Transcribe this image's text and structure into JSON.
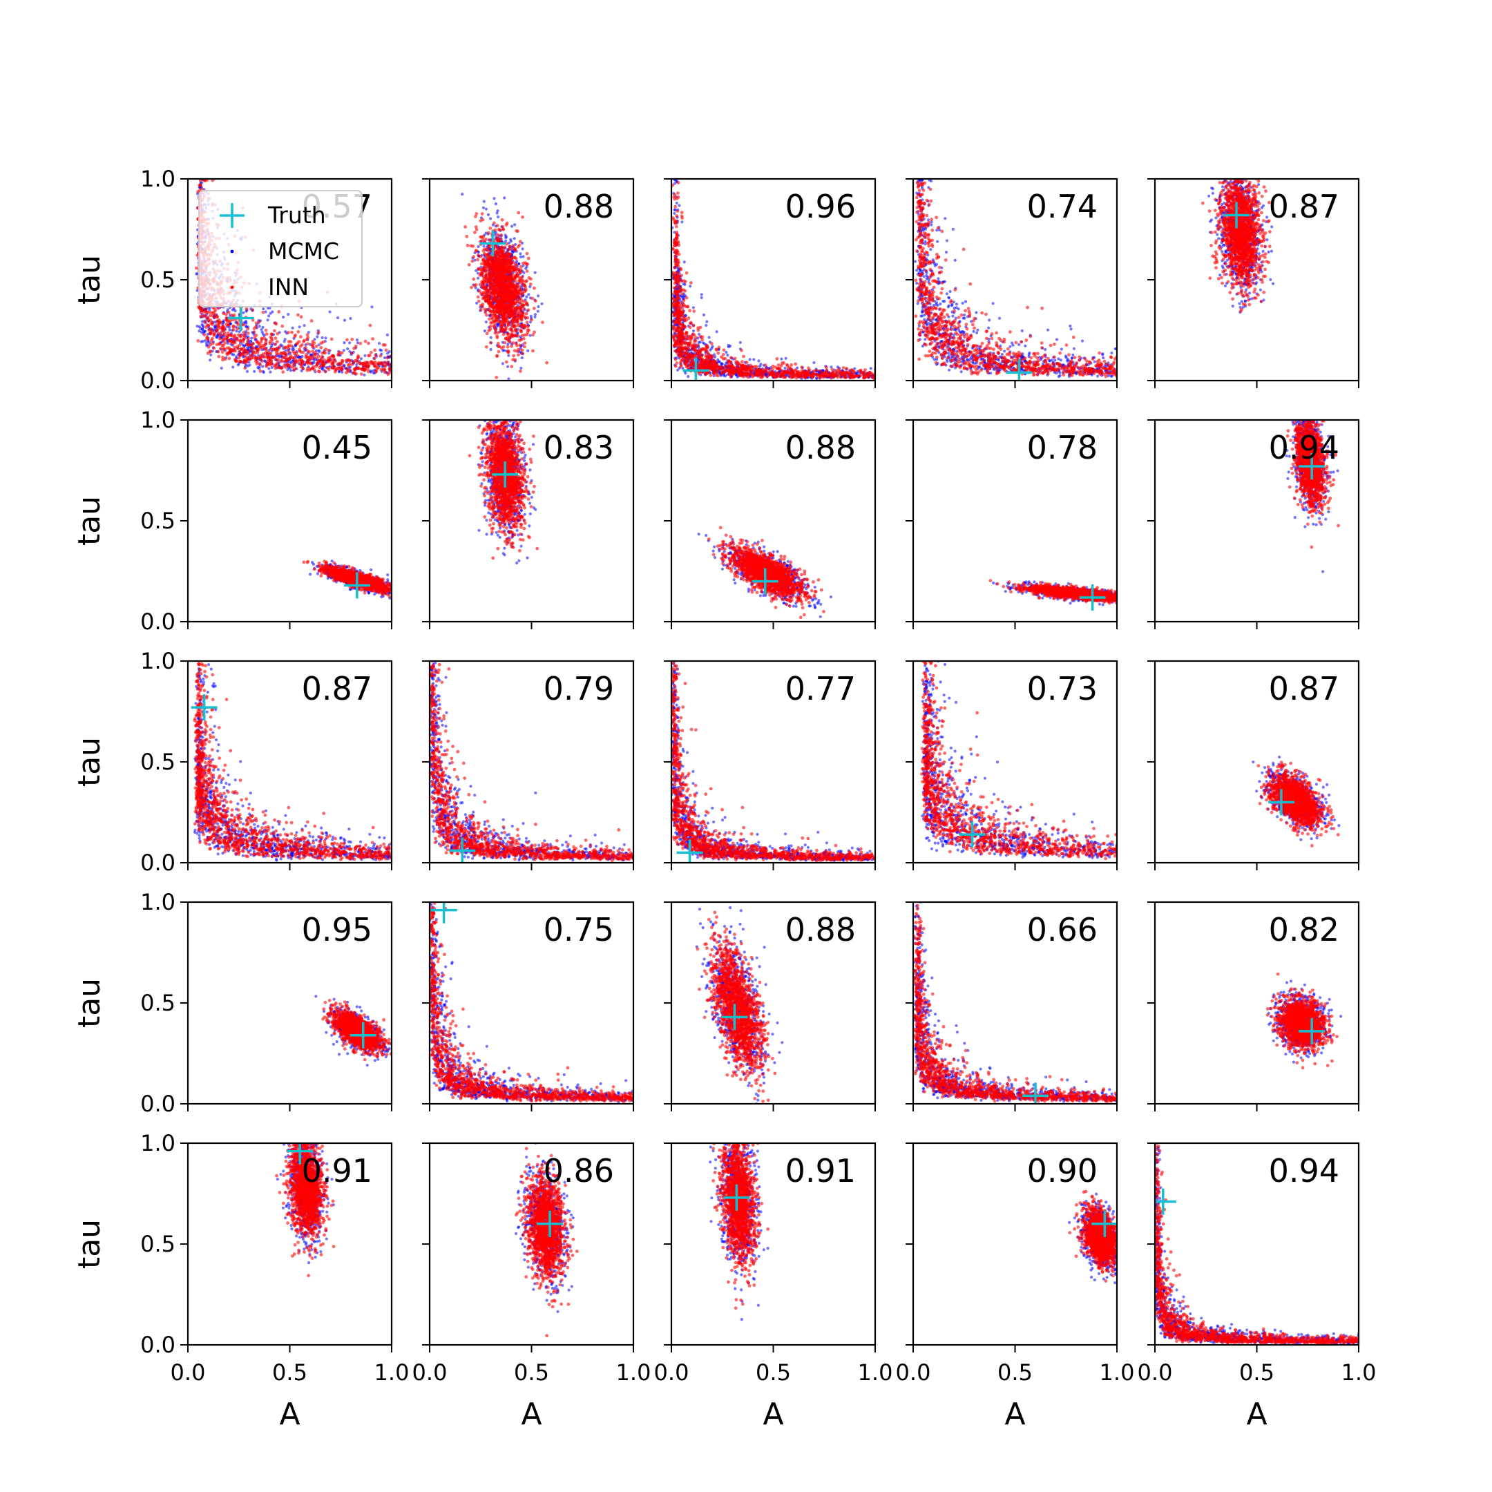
{
  "chart_data": {
    "type": "scatter",
    "grid": {
      "rows": 5,
      "cols": 5
    },
    "xlabel": "A",
    "ylabel": "tau",
    "xlim": [
      0,
      1
    ],
    "ylim": [
      0,
      1
    ],
    "xticks": [
      "0.0",
      "0.5",
      "1.0"
    ],
    "yticks": [
      "0.0",
      "0.5",
      "1.0"
    ],
    "grid_lines": false,
    "legend": {
      "placement": "top-left of first panel",
      "entries": [
        {
          "label": "Truth",
          "marker": "plus",
          "color": "#17becf"
        },
        {
          "label": "MCMC",
          "marker": "dot",
          "color": "#0000ff"
        },
        {
          "label": "INN",
          "marker": "dot",
          "color": "#ff0000"
        }
      ]
    },
    "colors": {
      "truth": "#17becf",
      "mcmc": "#0000ff",
      "inn": "#ff0000"
    },
    "panels": [
      {
        "score": "0.57",
        "truth": [
          0.26,
          0.31
        ],
        "shape": "curve",
        "a0": 0.06,
        "t0": 0.12,
        "k": 0.05,
        "n": 1100
      },
      {
        "score": "0.88",
        "truth": [
          0.31,
          0.68
        ],
        "shape": "blob",
        "cx": 0.36,
        "cy": 0.46,
        "sx": 0.055,
        "sy": 0.13,
        "rho": -0.3
      },
      {
        "score": "0.96",
        "truth": [
          0.12,
          0.05
        ],
        "shape": "curve",
        "a0": 0.02,
        "t0": 0.05,
        "k": 0.012,
        "n": 1100
      },
      {
        "score": "0.74",
        "truth": [
          0.52,
          0.04
        ],
        "shape": "curve",
        "a0": 0.03,
        "t0": 0.08,
        "k": 0.035,
        "n": 1100
      },
      {
        "score": "0.87",
        "truth": [
          0.4,
          0.82
        ],
        "shape": "blob",
        "cx": 0.42,
        "cy": 0.74,
        "sx": 0.05,
        "sy": 0.14,
        "rho": -0.2
      },
      {
        "score": "0.45",
        "truth": [
          0.83,
          0.18
        ],
        "shape": "blob",
        "cx": 0.83,
        "cy": 0.21,
        "sx": 0.075,
        "sy": 0.028,
        "rho": -0.8
      },
      {
        "score": "0.83",
        "truth": [
          0.37,
          0.73
        ],
        "shape": "blob",
        "cx": 0.37,
        "cy": 0.73,
        "sx": 0.045,
        "sy": 0.14,
        "rho": -0.2
      },
      {
        "score": "0.88",
        "truth": [
          0.46,
          0.2
        ],
        "shape": "blob",
        "cx": 0.47,
        "cy": 0.24,
        "sx": 0.09,
        "sy": 0.06,
        "rho": -0.7
      },
      {
        "score": "0.78",
        "truth": [
          0.88,
          0.12
        ],
        "shape": "blob",
        "cx": 0.8,
        "cy": 0.14,
        "sx": 0.12,
        "sy": 0.018,
        "rho": -0.7
      },
      {
        "score": "0.94",
        "truth": [
          0.77,
          0.77
        ],
        "shape": "blob",
        "cx": 0.76,
        "cy": 0.8,
        "sx": 0.035,
        "sy": 0.11,
        "rho": -0.3
      },
      {
        "score": "0.87",
        "truth": [
          0.08,
          0.77
        ],
        "shape": "curve",
        "a0": 0.05,
        "t0": 0.04,
        "k": 0.03,
        "n": 1200
      },
      {
        "score": "0.79",
        "truth": [
          0.16,
          0.06
        ],
        "shape": "curve",
        "a0": 0.01,
        "t0": 0.05,
        "k": 0.018,
        "n": 1200
      },
      {
        "score": "0.77",
        "truth": [
          0.09,
          0.05
        ],
        "shape": "curve",
        "a0": 0.01,
        "t0": 0.05,
        "k": 0.012,
        "n": 1200
      },
      {
        "score": "0.73",
        "truth": [
          0.29,
          0.14
        ],
        "shape": "curve",
        "a0": 0.06,
        "t0": 0.1,
        "k": 0.04,
        "n": 1100
      },
      {
        "score": "0.87",
        "truth": [
          0.62,
          0.3
        ],
        "shape": "blob",
        "cx": 0.69,
        "cy": 0.31,
        "sx": 0.06,
        "sy": 0.06,
        "rho": -0.5
      },
      {
        "score": "0.95",
        "truth": [
          0.86,
          0.34
        ],
        "shape": "blob",
        "cx": 0.83,
        "cy": 0.36,
        "sx": 0.055,
        "sy": 0.045,
        "rho": -0.6
      },
      {
        "score": "0.75",
        "truth": [
          0.07,
          0.96
        ],
        "shape": "curve",
        "a0": 0.01,
        "t0": 0.05,
        "k": 0.015,
        "n": 1200
      },
      {
        "score": "0.88",
        "truth": [
          0.31,
          0.43
        ],
        "shape": "blob",
        "cx": 0.32,
        "cy": 0.48,
        "sx": 0.06,
        "sy": 0.15,
        "rho": -0.55
      },
      {
        "score": "0.66",
        "truth": [
          0.6,
          0.04
        ],
        "shape": "curve",
        "a0": 0.02,
        "t0": 0.06,
        "k": 0.015,
        "n": 1200
      },
      {
        "score": "0.82",
        "truth": [
          0.77,
          0.36
        ],
        "shape": "blob",
        "cx": 0.72,
        "cy": 0.4,
        "sx": 0.055,
        "sy": 0.06,
        "rho": -0.2
      },
      {
        "score": "0.91",
        "truth": [
          0.55,
          0.96
        ],
        "shape": "blob",
        "cx": 0.58,
        "cy": 0.78,
        "sx": 0.04,
        "sy": 0.12,
        "rho": -0.2
      },
      {
        "score": "0.86",
        "truth": [
          0.59,
          0.6
        ],
        "shape": "blob",
        "cx": 0.57,
        "cy": 0.59,
        "sx": 0.045,
        "sy": 0.12,
        "rho": -0.2
      },
      {
        "score": "0.91",
        "truth": [
          0.32,
          0.73
        ],
        "shape": "blob",
        "cx": 0.33,
        "cy": 0.72,
        "sx": 0.04,
        "sy": 0.15,
        "rho": -0.2
      },
      {
        "score": "0.90",
        "truth": [
          0.94,
          0.6
        ],
        "shape": "blob",
        "cx": 0.92,
        "cy": 0.53,
        "sx": 0.04,
        "sy": 0.07,
        "rho": -0.3
      },
      {
        "score": "0.94",
        "truth": [
          0.04,
          0.71
        ],
        "shape": "curve",
        "a0": 0.005,
        "t0": 0.02,
        "k": 0.008,
        "n": 1200
      }
    ]
  }
}
